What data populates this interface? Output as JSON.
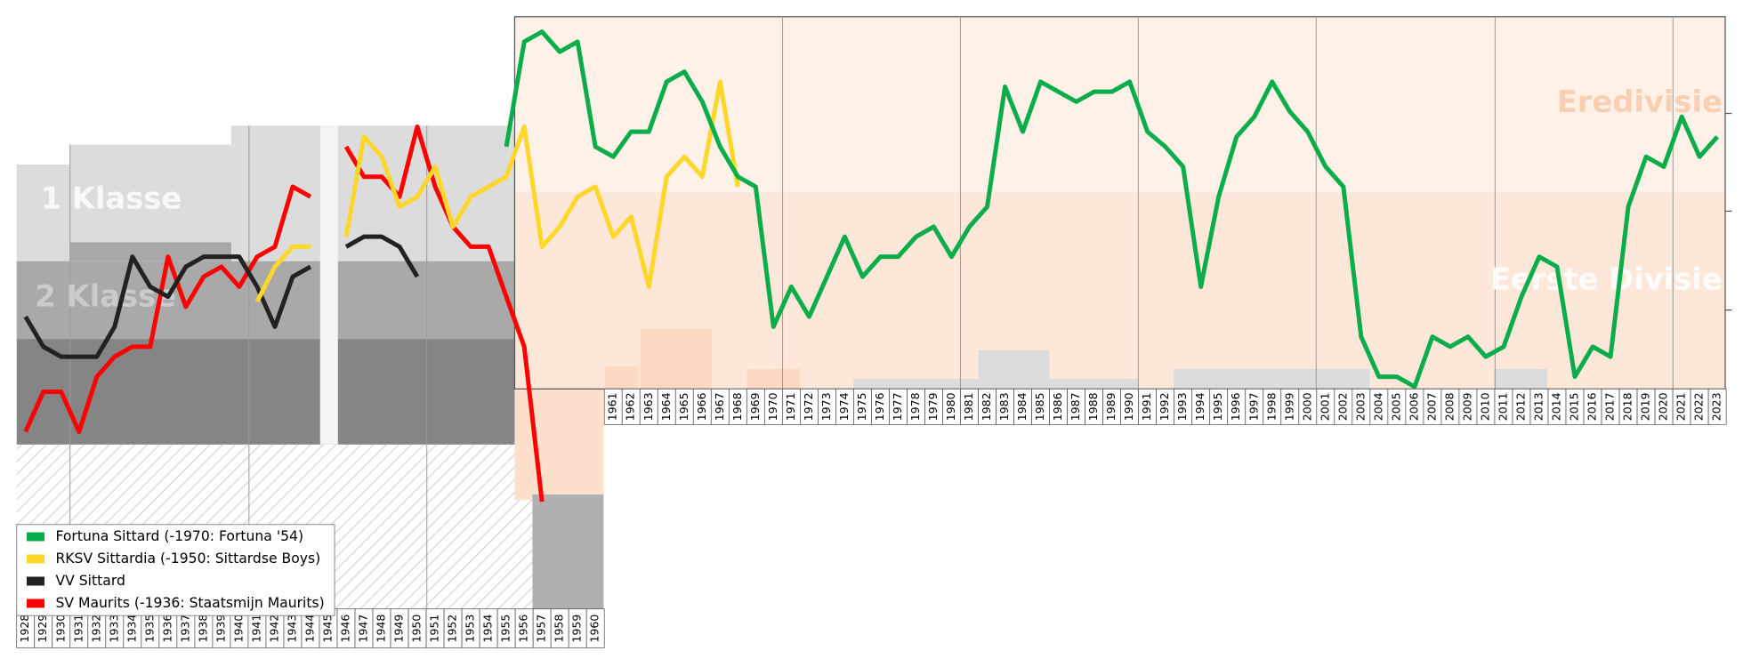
{
  "chart_data": {
    "type": "line",
    "annotations": [
      "1 Klasse",
      "2 Klasse",
      "Eredivisie",
      "Eerste Divisie"
    ],
    "categories": [
      "1928",
      "1929",
      "1930",
      "1931",
      "1932",
      "1933",
      "1934",
      "1935",
      "1936",
      "1937",
      "1938",
      "1939",
      "1940",
      "1941",
      "1942",
      "1943",
      "1944",
      "1945",
      "1946",
      "1947",
      "1948",
      "1949",
      "1950",
      "1951",
      "1952",
      "1953",
      "1954",
      "1955",
      "1956",
      "1957",
      "1958",
      "1959",
      "1960",
      "1961",
      "1962",
      "1963",
      "1964",
      "1965",
      "1966",
      "1967",
      "1968",
      "1969",
      "1970",
      "1971",
      "1972",
      "1973",
      "1974",
      "1975",
      "1976",
      "1977",
      "1978",
      "1979",
      "1980",
      "1981",
      "1982",
      "1983",
      "1984",
      "1985",
      "1986",
      "1987",
      "1988",
      "1989",
      "1990",
      "1991",
      "1992",
      "1993",
      "1994",
      "1995",
      "1996",
      "1997",
      "1998",
      "1999",
      "2000",
      "2001",
      "2002",
      "2003",
      "2004",
      "2005",
      "2006",
      "2007",
      "2008",
      "2009",
      "2010",
      "2011",
      "2012",
      "2013",
      "2014",
      "2015",
      "2016",
      "2017",
      "2018",
      "2019",
      "2020",
      "2021",
      "2022",
      "2023"
    ],
    "ylim": [
      100,
      0
    ],
    "series": [
      {
        "name": "Fortuna Sittard (-1970: Fortuna '54)",
        "color": "#0aad4a",
        "values": [
          null,
          null,
          null,
          null,
          null,
          null,
          null,
          null,
          null,
          null,
          null,
          null,
          null,
          null,
          null,
          null,
          null,
          null,
          null,
          null,
          null,
          null,
          null,
          null,
          null,
          null,
          null,
          26,
          5,
          3,
          7,
          5,
          26,
          28,
          23,
          23,
          13,
          11,
          17,
          26,
          32,
          34,
          62,
          54,
          60,
          52,
          44,
          52,
          48,
          48,
          44,
          42,
          48,
          42,
          38,
          14,
          23,
          13,
          15,
          17,
          15,
          15,
          13,
          23,
          26,
          30,
          54,
          36,
          24,
          20,
          13,
          19,
          23,
          30,
          34,
          64,
          72,
          72,
          74,
          64,
          66,
          64,
          68,
          66,
          56,
          48,
          50,
          72,
          66,
          68,
          38,
          28,
          30,
          20,
          28,
          24
        ]
      },
      {
        "name": "RKSV Sittardia (-1950: Sittardse Boys)",
        "color": "#ffd62a",
        "values": [
          null,
          null,
          null,
          null,
          null,
          null,
          null,
          null,
          null,
          null,
          null,
          null,
          null,
          57,
          50,
          46,
          46,
          null,
          44,
          24,
          28,
          38,
          36,
          30,
          42,
          36,
          34,
          32,
          22,
          46,
          42,
          36,
          34,
          44,
          40,
          54,
          32,
          28,
          32,
          13,
          34,
          null,
          null,
          null,
          null,
          null,
          null,
          null,
          null,
          null,
          null,
          null,
          null,
          null,
          null,
          null,
          null,
          null,
          null,
          null,
          null,
          null,
          null,
          null,
          null,
          null,
          null,
          null,
          null,
          null,
          null,
          null,
          null,
          null,
          null,
          null,
          null,
          null,
          null,
          null,
          null,
          null,
          null,
          null,
          null,
          null,
          null,
          null,
          null,
          null,
          null,
          null,
          null,
          null,
          null,
          null
        ]
      },
      {
        "name": "VV Sittard",
        "color": "#222222",
        "values": [
          60,
          66,
          68,
          68,
          68,
          62,
          48,
          54,
          56,
          50,
          48,
          48,
          48,
          54,
          62,
          52,
          50,
          null,
          46,
          44,
          44,
          46,
          52,
          null,
          null,
          null,
          null,
          null,
          null,
          null,
          null,
          null,
          null,
          null,
          null,
          null,
          null,
          null,
          null,
          null,
          null,
          null,
          null,
          null,
          null,
          null,
          null,
          null,
          null,
          null,
          null,
          null,
          null,
          null,
          null,
          null,
          null,
          null,
          null,
          null,
          null,
          null,
          null,
          null,
          null,
          null,
          null,
          null,
          null,
          null,
          null,
          null,
          null,
          null,
          null,
          null,
          null,
          null,
          null,
          null,
          null,
          null,
          null,
          null,
          null,
          null,
          null,
          null,
          null,
          null,
          null,
          null,
          null,
          null,
          null,
          null
        ]
      },
      {
        "name": "SV Maurits (-1936: Staatsmijn Maurits)",
        "color": "#ff0000",
        "values": [
          83,
          75,
          75,
          83,
          72,
          68,
          66,
          66,
          48,
          58,
          52,
          50,
          54,
          48,
          46,
          34,
          36,
          null,
          26,
          32,
          32,
          36,
          22,
          34,
          42,
          46,
          46,
          56,
          66,
          97,
          null,
          null,
          null,
          null,
          null,
          null,
          null,
          null,
          null,
          null,
          null,
          null,
          null,
          null,
          null,
          null,
          null,
          null,
          null,
          null,
          null,
          null,
          null,
          null,
          null,
          null,
          null,
          null,
          null,
          null,
          null,
          null,
          null,
          null,
          null,
          null,
          null,
          null,
          null,
          null,
          null,
          null,
          null,
          null,
          null,
          null,
          null,
          null,
          null,
          null,
          null,
          null,
          null,
          null,
          null,
          null,
          null,
          null,
          null,
          null,
          null,
          null,
          null,
          null,
          null,
          null
        ]
      }
    ]
  }
}
